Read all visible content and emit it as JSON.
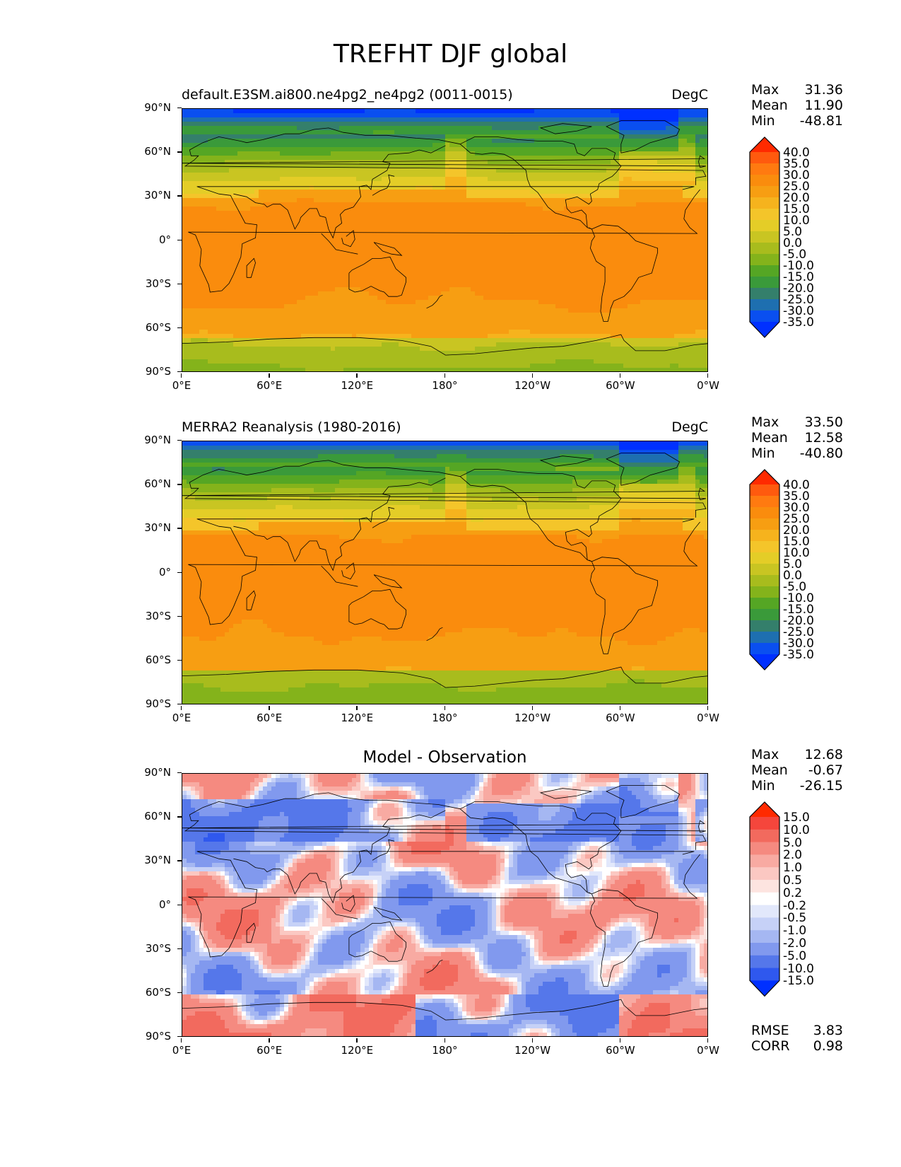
{
  "figure": {
    "title": "TREFHT DJF global"
  },
  "panels": [
    {
      "id": "model",
      "title": "default.E3SM.ai800.ne4pg2_ne4pg2 (0011-0015)",
      "units": "DegC",
      "stats": {
        "max_label": "Max",
        "max": "31.36",
        "mean_label": "Mean",
        "mean": "11.90",
        "min_label": "Min",
        "min": "-48.81"
      },
      "colorbar": {
        "labels": [
          "40.0",
          "35.0",
          "30.0",
          "25.0",
          "20.0",
          "15.0",
          "10.0",
          "5.0",
          "0.0",
          "-5.0",
          "-10.0",
          "-15.0",
          "-20.0",
          "-25.0",
          "-30.0",
          "-35.0"
        ],
        "colors": [
          "#ff2a00",
          "#ff5a0e",
          "#ff7a10",
          "#fa8c0d",
          "#f79e12",
          "#f6b31d",
          "#f4c52a",
          "#e4cd27",
          "#c9c522",
          "#a8bc1d",
          "#84b31b",
          "#55a624",
          "#3a9a3a",
          "#347f6b",
          "#1e6fb0",
          "#0a4ff0",
          "#0030ff"
        ]
      },
      "lat_ticks": [
        "90°N",
        "60°N",
        "30°N",
        "0°",
        "30°S",
        "60°S",
        "90°S"
      ],
      "lon_ticks": [
        "0°E",
        "60°E",
        "120°E",
        "180°",
        "120°W",
        "60°W",
        "0°W"
      ]
    },
    {
      "id": "obs",
      "title": "MERRA2 Reanalysis (1980-2016)",
      "units": "DegC",
      "stats": {
        "max_label": "Max",
        "max": "33.50",
        "mean_label": "Mean",
        "mean": "12.58",
        "min_label": "Min",
        "min": "-40.80"
      },
      "colorbar": {
        "labels": [
          "40.0",
          "35.0",
          "30.0",
          "25.0",
          "20.0",
          "15.0",
          "10.0",
          "5.0",
          "0.0",
          "-5.0",
          "-10.0",
          "-15.0",
          "-20.0",
          "-25.0",
          "-30.0",
          "-35.0"
        ],
        "colors": [
          "#ff2a00",
          "#ff5a0e",
          "#ff7a10",
          "#fa8c0d",
          "#f79e12",
          "#f6b31d",
          "#f4c52a",
          "#e4cd27",
          "#c9c522",
          "#a8bc1d",
          "#84b31b",
          "#55a624",
          "#3a9a3a",
          "#347f6b",
          "#1e6fb0",
          "#0a4ff0",
          "#0030ff"
        ]
      },
      "lat_ticks": [
        "90°N",
        "60°N",
        "30°N",
        "0°",
        "30°S",
        "60°S",
        "90°S"
      ],
      "lon_ticks": [
        "0°E",
        "60°E",
        "120°E",
        "180°",
        "120°W",
        "60°W",
        "0°W"
      ]
    },
    {
      "id": "diff",
      "title": "Model - Observation",
      "stats": {
        "max_label": "Max",
        "max": "12.68",
        "mean_label": "Mean",
        "mean": "-0.67",
        "min_label": "Min",
        "min": "-26.15"
      },
      "metrics": {
        "rmse_label": "RMSE",
        "rmse": "3.83",
        "corr_label": "CORR",
        "corr": "0.98"
      },
      "colorbar": {
        "labels": [
          "15.0",
          "10.0",
          "5.0",
          "2.0",
          "1.0",
          "0.5",
          "0.2",
          "-0.2",
          "-0.5",
          "-1.0",
          "-2.0",
          "-5.0",
          "-10.0",
          "-15.0"
        ],
        "colors": [
          "#ff2a00",
          "#f5463c",
          "#f26a5e",
          "#f58a80",
          "#f8aaa2",
          "#fbc8c2",
          "#fde4e0",
          "#ffffff",
          "#e2e8fb",
          "#c6d1f7",
          "#a5b7f2",
          "#8199ee",
          "#5577ea",
          "#2f58ee",
          "#0030ff"
        ]
      },
      "lat_ticks": [
        "90°N",
        "60°N",
        "30°N",
        "0°",
        "30°S",
        "60°S",
        "90°S"
      ],
      "lon_ticks": [
        "0°E",
        "60°E",
        "120°E",
        "180°",
        "120°W",
        "60°W",
        "0°W"
      ]
    }
  ]
}
